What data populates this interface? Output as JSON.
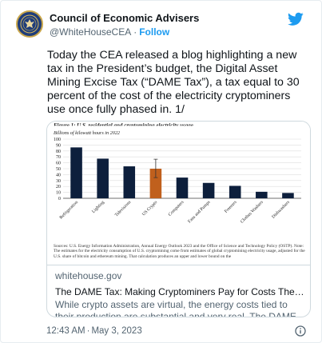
{
  "account": {
    "name": "Council of Economic Advisers",
    "handle": "@WhiteHouseCEA",
    "separator": "·",
    "follow_label": "Follow",
    "avatar_icon": "presidential-seal-icon"
  },
  "brand": {
    "logo_icon": "twitter-bird-icon",
    "accent_color": "#1d9bf0"
  },
  "tweet": {
    "text": "Today the CEA released a blog highlighting a new tax in the President’s budget, the Digital Asset Mining Excise Tax (“DAME Tax”), a tax equal to 30 percent of the cost of the electricity cryptominers use once fully phased in. 1/"
  },
  "card": {
    "figure_title": "Figure 1: U.S. residential and cryptomining electricity usage",
    "figure_unit": "Billions of kilowatt hours in 2022",
    "figure_source": "Sources: U.S. Energy Information Administration, Annual Energy Outlook 2023 and the Office of Science and Technology Policy (OSTP). Note: The estimates for the electricity consumption of U.S. cryptomining come from estimates of global cryptomining electricity usage, adjusted for the U.S. share of bitcoin and ethereum mining. That calculation produces an upper and lower bound on the",
    "domain": "whitehouse.gov",
    "title": "The DAME Tax: Making Cryptominers Pay for Costs They Impose ...",
    "description": "While crypto assets are virtual, the energy costs tied to their production are substantial and very real. The DAME tax aims to ..."
  },
  "chart_data": {
    "type": "bar",
    "categories": [
      "Refrigeration",
      "Lighting",
      "Televisions",
      "US Crypto",
      "Computers",
      "Fans and Pumps",
      "Freezers",
      "Clothes Washers",
      "Dishwashers"
    ],
    "values": [
      86,
      67,
      54,
      50,
      35,
      26,
      21,
      11,
      9
    ],
    "highlight_index": 3,
    "error_bar": {
      "index": 3,
      "low": 35,
      "high": 66
    },
    "ylim": [
      0,
      100
    ],
    "yticks": [
      0,
      10,
      20,
      30,
      40,
      50,
      60,
      70,
      80,
      90,
      100
    ],
    "ylabel": "Billions of kilowatt hours in 2022",
    "xlabel": "",
    "grid": true,
    "colors": {
      "bar": "#0d1f3c",
      "highlight": "#c0601d",
      "grid": "#dddddd"
    }
  },
  "footer": {
    "time": "12:43 AM",
    "separator": "·",
    "date": "May 3, 2023",
    "info_icon": "info-icon"
  }
}
